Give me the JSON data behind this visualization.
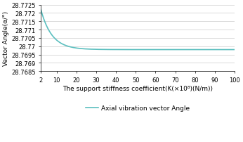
{
  "title": "",
  "xlabel": "The support stiffness coefficient(K(×10⁸)(N/m))",
  "ylabel": "Vector Angle(α/°)",
  "legend_label": "Axial vibration vector Angle",
  "line_color": "#5bbfbf",
  "background_color": "#ffffff",
  "grid_color": "#cccccc",
  "xlim": [
    2,
    100
  ],
  "ylim": [
    28.7685,
    28.7725
  ],
  "xticks": [
    2,
    10,
    20,
    30,
    40,
    50,
    60,
    70,
    80,
    90,
    100
  ],
  "ytick_values": [
    28.7685,
    28.769,
    28.7695,
    28.77,
    28.7705,
    28.771,
    28.7715,
    28.772,
    28.7725
  ],
  "ytick_labels": [
    "28.7685",
    "28.769",
    "28.7695",
    "28.77",
    "28.7705",
    "28.771",
    "28.7715",
    "28.772",
    "28.7725"
  ],
  "x_start": 2,
  "x_end": 100,
  "y_start": 28.7722,
  "y_asymptote": 28.7698,
  "decay": 0.18
}
